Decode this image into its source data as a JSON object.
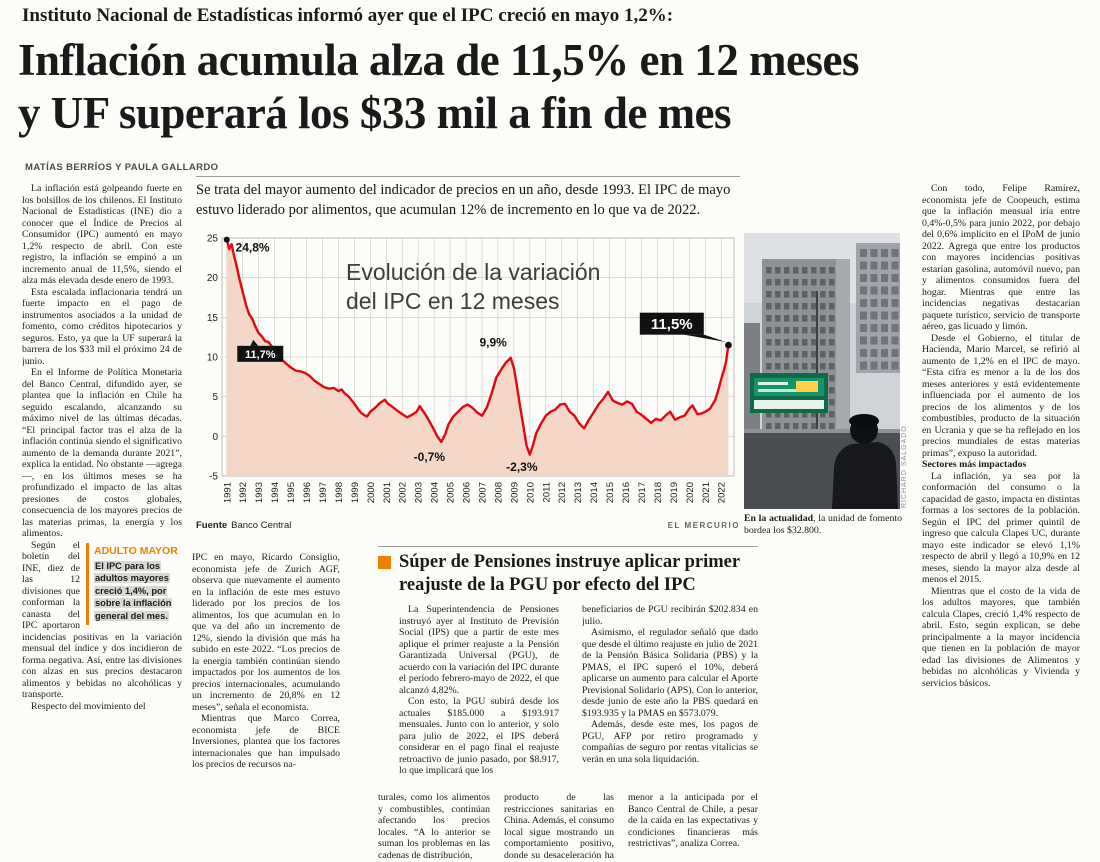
{
  "colors": {
    "accent_orange": "#ee7f00",
    "line_red": "#e30613"
  },
  "masthead": {
    "kicker": "Instituto Nacional de Estadísticas informó ayer que el IPC creció en mayo 1,2%:",
    "headline_line1": "Inflación acumula alza de 11,5% en 12 meses",
    "headline_line2": "y UF superará los $33 mil a fin de mes",
    "byline": "MATÍAS BERRÍOS Y PAULA GALLARDO"
  },
  "deck": "Se trata del mayor aumento del indicador de precios en un año, desde 1993. El IPC de mayo estuvo liderado por alimentos, que acumulan 12% de incremento en lo que va de 2022.",
  "left_column": {
    "paragraphs": [
      "La inflación está golpeando fuerte en los bolsillos de los chilenos. El Instituto Nacional de Estadísticas (INE) dio a conocer que el Índice de Precios al Consumidor (IPC) aumentó en mayo 1,2% respecto de abril. Con este registro, la inflación se empinó a un incremento anual de 11,5%, siendo el alza más elevada desde enero de 1993.",
      "Esta escalada inflacionaria tendrá un fuerte impacto en el pago de instrumentos asociados a la unidad de fomento, como créditos hipotecarios y seguros. Esto, ya que la UF superará la barrera de los $33 mil el próximo 24 de junio.",
      "En el Informe de Política Monetaria del Banco Central, difundido ayer, se plantea que la inflación en Chile ha seguido escalando, alcanzando su máximo nivel de las últimas décadas. “El principal factor tras el alza de la inflación continúa siendo el significativo aumento de la demanda durante 2021”, explica la entidad. No obstante —agrega—, en los últimos meses se ha profundizado el impacto de las altas presiones de costos globales, consecuencia de los mayores precios de las materias primas, la energía y los alimentos."
    ],
    "adulto_mayor": {
      "title": "ADULTO MAYOR",
      "text": "El IPC para los adultos mayores creció 1,4%, por sobre la inflación general del mes."
    },
    "paragraphs_after": [
      "Según el boletín del INE, diez de las 12 divisiones que conforman la canasta del IPC aportaron incidencias positivas en la variación mensual del índice y dos incidieron de forma negativa. Así, entre las divisiones con alzas en sus precios destacaron alimentos y bebidas no alcohólicas y transporte.",
      "Respecto del movimiento del"
    ]
  },
  "continuation_column": {
    "paragraphs": [
      "IPC en mayo, Ricardo Consiglio, economista jefe de Zurich AGF, observa que nuevamente el aumento en la inflación de este mes estuvo liderado por los precios de los alimentos, los que acumulan en lo que va del año un incremento de 12%, siendo la división que más ha subido en este 2022. “Los precios de la energía también continúan siendo impactados por los aumentos de los precios internacionales, acumulando un incremento de 20,8% en 12 meses”, señala el economista.",
      "Mientras que Marco Correa, economista jefe de BICE Inversiones, plantea que los factores internacionales que han impulsado los precios de recursos na-"
    ]
  },
  "bottom_row": {
    "col1": "turales, como los alimentos y combustibles, continúan afectando los precios locales. “A lo anterior se suman los problemas en las cadenas de distribución,",
    "col2": "producto de las restricciones sanitarias en China. Además, el consumo local sigue mostrando un comportamiento positivo, donde su desaceleración ha sido",
    "col3": "menor a la anticipada por el Banco Central de Chile, a pesar de la caída en las expectativas y condiciones financieras más restrictivas”, analiza Correa."
  },
  "secondary_story": {
    "headline_line1": "Súper de Pensiones instruye aplicar primer",
    "headline_line2": "reajuste de la PGU por efecto del IPC",
    "col1_paragraphs": [
      "La Superintendencia de Pensiones instruyó ayer al Instituto de Previsión Social (IPS) que a partir de este mes aplique el primer reajuste a la Pensión Garantizada Universal (PGU), de acuerdo con la variación del IPC durante el período febrero-mayo de 2022, el que alcanzó 4,82%.",
      "Con esto, la PGU subirá desde los actuales $185.000 a $193.917 mensuales. Junto con lo anterior, y solo para julio de 2022, el IPS deberá considerar en el pago final el reajuste retroactivo de junio pasado, por $8.917, lo que implicará que los"
    ],
    "col2_paragraphs": [
      "beneficiarios de PGU recibirán $202.834 en julio.",
      "Asimismo, el regulador señaló que dado que desde el último reajuste en julio de 2021 de la Pensión Básica Solidaria (PBS) y la PMAS, el IPC superó el 10%, deberá aplicarse un aumento para calcular el Aporte Previsional Solidario (APS). Con lo anterior, desde junio de este año la PBS quedará en $193.935 y la PMAS en $573.079.",
      "Además, desde este mes, los pagos de PGU, AFP por retiro programado y compañías de seguro por rentas vitalicias se verán en una sola liquidación."
    ]
  },
  "right_column": {
    "paragraphs_top": [
      "Con todo, Felipe Ramírez, economista jefe de Coopeuch, estima que la inflación mensual iría entre 0,4%-0,5% para junio 2022, por debajo del 0,6% implícito en el IPoM de junio 2022. Agrega que entre los productos con mayores incidencias positivas estarían gasolina, automóvil nuevo, pan y alimentos consumidos fuera del hogar. Mientras que entre las incidencias negativas destacarían paquete turístico, servicio de transporte aéreo, gas licuado y limón.",
      "Desde el Gobierno, el titular de Hacienda, Mario Marcel, se refirió al aumento de 1,2% en el IPC de mayo. “Esta cifra es menor a la de los dos meses anteriores y está evidentemente influenciada por el aumento de los precios de los alimentos y de los combustibles, producto de la situación en Ucrania y que se ha reflejado en los precios mundiales de estas materias primas”, expuso la autoridad."
    ],
    "subhead": "Sectores más impactados",
    "paragraphs_bottom": [
      "La inflación, ya sea por la conformación del consumo o la capacidad de gasto, impacta en distintas formas a los sectores de la población. Según el IPC del primer quintil de ingreso que calcula Clapes UC, durante mayo este indicador se elevó 1,1% respecto de abril y llegó a 10,9% en 12 meses, siendo la mayor alza desde al menos el 2015.",
      "Mientras que el costo de la vida de los adultos mayores, que también calcula Clapes, creció 1,4% respecto de abril. Esto, según explican, se debe principalmente a la mayor incidencia que tienen en la población de mayor edad las divisiones de Alimentos y bebidas no alcohólicas y Vivienda y servicios básicos."
    ]
  },
  "photo": {
    "caption_lead": "En la actualidad",
    "caption_rest": ", la unidad de fomento bordea los $32.800.",
    "credit": "RICHARD SALGADO"
  },
  "chart_data": {
    "type": "line",
    "title": "Evolución de la variación del IPC en 12 meses",
    "unit": "%",
    "xlim": [
      1990.7,
      2022.8
    ],
    "ylim": [
      -5,
      25
    ],
    "grid": true,
    "x_ticks": [
      1991,
      1992,
      1993,
      1994,
      1995,
      1996,
      1997,
      1998,
      1999,
      2000,
      2001,
      2002,
      2003,
      2004,
      2005,
      2006,
      2007,
      2008,
      2009,
      2010,
      2011,
      2012,
      2013,
      2014,
      2015,
      2016,
      2017,
      2018,
      2019,
      2020,
      2021,
      2022
    ],
    "y_ticks": [
      25,
      20,
      15,
      10,
      5,
      0,
      -5
    ],
    "line_color": "#e30613",
    "fill_color": "#f4d7c6",
    "source_label": "Fuente",
    "source_value": "Banco Central",
    "credit": "EL MERCURIO",
    "annotations": [
      {
        "label": "24,8%",
        "x": 1991.55,
        "y": 23.3,
        "style": "plain",
        "anchor": "start"
      },
      {
        "label": "11,7%",
        "x": 1993.1,
        "y": 10.4,
        "style": "box"
      },
      {
        "label": "9,9%",
        "x": 2007.7,
        "y": 11.3,
        "style": "plain",
        "anchor": "middle"
      },
      {
        "label": "-0,7%",
        "x": 2003.7,
        "y": -3.1,
        "style": "plain",
        "anchor": "middle"
      },
      {
        "label": "-2,3%",
        "x": 2009.5,
        "y": -4.4,
        "style": "plain",
        "anchor": "middle"
      },
      {
        "label": "11,5%",
        "x": 2018.9,
        "y": 14.2,
        "style": "box-large"
      }
    ],
    "series": [
      {
        "name": "Variación IPC 12 meses (%)",
        "points": [
          [
            1991.0,
            24.8
          ],
          [
            1991.15,
            23.6
          ],
          [
            1991.3,
            24.2
          ],
          [
            1991.45,
            22.8
          ],
          [
            1991.6,
            21.6
          ],
          [
            1991.8,
            19.8
          ],
          [
            1992.0,
            18.2
          ],
          [
            1992.2,
            16.6
          ],
          [
            1992.4,
            15.4
          ],
          [
            1992.6,
            14.8
          ],
          [
            1992.8,
            13.8
          ],
          [
            1993.0,
            13.0
          ],
          [
            1993.2,
            12.6
          ],
          [
            1993.4,
            12.0
          ],
          [
            1993.6,
            11.9
          ],
          [
            1993.8,
            11.4
          ],
          [
            1994.0,
            11.0
          ],
          [
            1994.25,
            10.2
          ],
          [
            1994.5,
            9.6
          ],
          [
            1994.75,
            9.1
          ],
          [
            1995.0,
            8.7
          ],
          [
            1995.3,
            8.3
          ],
          [
            1995.6,
            8.2
          ],
          [
            1995.9,
            8.0
          ],
          [
            1996.2,
            7.6
          ],
          [
            1996.5,
            7.0
          ],
          [
            1996.8,
            6.6
          ],
          [
            1997.1,
            6.2
          ],
          [
            1997.4,
            6.0
          ],
          [
            1997.7,
            6.1
          ],
          [
            1998.0,
            5.7
          ],
          [
            1998.2,
            5.9
          ],
          [
            1998.4,
            5.4
          ],
          [
            1998.6,
            5.1
          ],
          [
            1998.8,
            4.6
          ],
          [
            1999.0,
            4.1
          ],
          [
            1999.2,
            3.5
          ],
          [
            1999.4,
            3.0
          ],
          [
            1999.6,
            2.7
          ],
          [
            1999.8,
            2.5
          ],
          [
            2000.0,
            3.1
          ],
          [
            2000.3,
            3.6
          ],
          [
            2000.6,
            4.2
          ],
          [
            2000.9,
            4.6
          ],
          [
            2001.1,
            4.1
          ],
          [
            2001.4,
            3.7
          ],
          [
            2001.7,
            3.2
          ],
          [
            2002.0,
            2.8
          ],
          [
            2002.3,
            2.4
          ],
          [
            2002.6,
            2.7
          ],
          [
            2002.9,
            3.1
          ],
          [
            2003.1,
            3.8
          ],
          [
            2003.4,
            2.9
          ],
          [
            2003.7,
            1.9
          ],
          [
            2004.0,
            0.8
          ],
          [
            2004.2,
            0.0
          ],
          [
            2004.45,
            -0.7
          ],
          [
            2004.7,
            0.3
          ],
          [
            2004.9,
            1.5
          ],
          [
            2005.2,
            2.5
          ],
          [
            2005.5,
            3.1
          ],
          [
            2005.8,
            3.7
          ],
          [
            2006.1,
            4.0
          ],
          [
            2006.4,
            3.6
          ],
          [
            2006.7,
            3.0
          ],
          [
            2007.0,
            2.6
          ],
          [
            2007.3,
            3.6
          ],
          [
            2007.6,
            5.4
          ],
          [
            2007.9,
            7.4
          ],
          [
            2008.2,
            8.4
          ],
          [
            2008.5,
            9.3
          ],
          [
            2008.8,
            9.9
          ],
          [
            2009.0,
            8.6
          ],
          [
            2009.2,
            6.2
          ],
          [
            2009.4,
            3.6
          ],
          [
            2009.6,
            1.2
          ],
          [
            2009.8,
            -1.2
          ],
          [
            2010.0,
            -2.3
          ],
          [
            2010.2,
            -1.1
          ],
          [
            2010.4,
            0.4
          ],
          [
            2010.7,
            1.6
          ],
          [
            2011.0,
            2.6
          ],
          [
            2011.3,
            3.1
          ],
          [
            2011.6,
            3.4
          ],
          [
            2011.9,
            4.0
          ],
          [
            2012.2,
            4.1
          ],
          [
            2012.5,
            3.1
          ],
          [
            2012.8,
            2.6
          ],
          [
            2013.1,
            1.6
          ],
          [
            2013.4,
            1.0
          ],
          [
            2013.7,
            2.1
          ],
          [
            2014.0,
            3.0
          ],
          [
            2014.3,
            4.0
          ],
          [
            2014.6,
            4.7
          ],
          [
            2014.9,
            5.6
          ],
          [
            2015.2,
            4.5
          ],
          [
            2015.5,
            4.2
          ],
          [
            2015.8,
            4.0
          ],
          [
            2016.1,
            4.4
          ],
          [
            2016.4,
            4.1
          ],
          [
            2016.7,
            3.1
          ],
          [
            2017.0,
            2.7
          ],
          [
            2017.3,
            2.2
          ],
          [
            2017.6,
            1.7
          ],
          [
            2017.9,
            2.2
          ],
          [
            2018.2,
            2.0
          ],
          [
            2018.5,
            2.6
          ],
          [
            2018.8,
            3.1
          ],
          [
            2019.1,
            2.1
          ],
          [
            2019.4,
            2.4
          ],
          [
            2019.7,
            2.6
          ],
          [
            2020.0,
            3.5
          ],
          [
            2020.2,
            3.9
          ],
          [
            2020.5,
            2.8
          ],
          [
            2020.8,
            2.9
          ],
          [
            2021.0,
            3.1
          ],
          [
            2021.3,
            3.5
          ],
          [
            2021.6,
            4.5
          ],
          [
            2021.8,
            5.7
          ],
          [
            2022.0,
            7.2
          ],
          [
            2022.15,
            8.2
          ],
          [
            2022.3,
            9.4
          ],
          [
            2022.45,
            11.5
          ]
        ]
      }
    ]
  }
}
